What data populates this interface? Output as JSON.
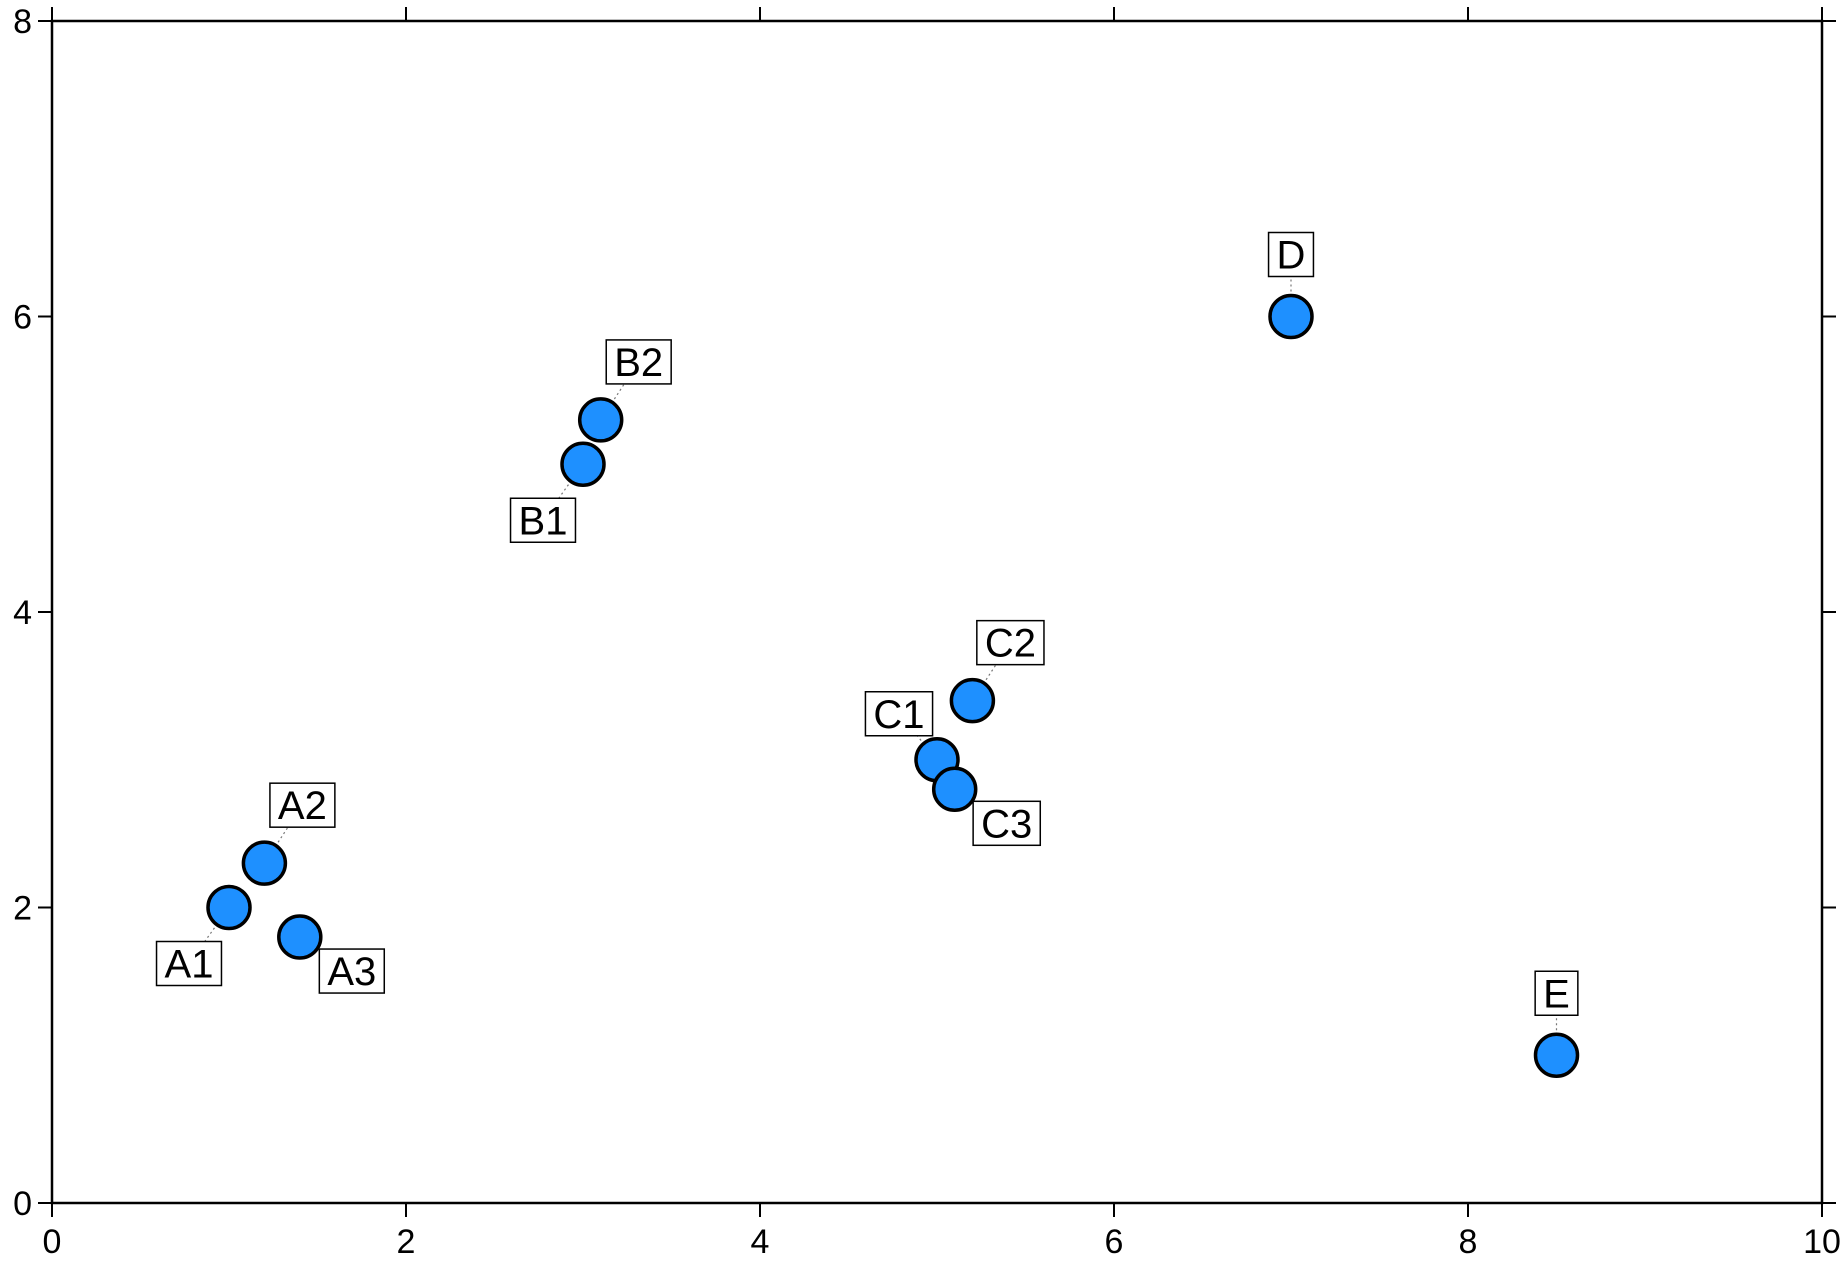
{
  "chart_data": {
    "type": "scatter",
    "title": "",
    "xlabel": "",
    "ylabel": "",
    "xlim": [
      0,
      10
    ],
    "ylim": [
      0,
      8
    ],
    "xticks": [
      0,
      2,
      4,
      6,
      8,
      10
    ],
    "yticks": [
      0,
      2,
      4,
      6,
      8
    ],
    "grid": false,
    "legend": false,
    "marker_color": "#1e90ff",
    "marker_edge_color": "#000000",
    "points": [
      {
        "label": "A1",
        "x": 1.0,
        "y": 2.0,
        "label_pos": "bottom-left"
      },
      {
        "label": "A2",
        "x": 1.2,
        "y": 2.3,
        "label_pos": "top-right"
      },
      {
        "label": "A3",
        "x": 1.4,
        "y": 1.8,
        "label_pos": "bottom-right"
      },
      {
        "label": "B1",
        "x": 3.0,
        "y": 5.0,
        "label_pos": "bottom-left"
      },
      {
        "label": "B2",
        "x": 3.1,
        "y": 5.3,
        "label_pos": "top-right"
      },
      {
        "label": "C1",
        "x": 5.0,
        "y": 3.0,
        "label_pos": "top-left"
      },
      {
        "label": "C2",
        "x": 5.2,
        "y": 3.4,
        "label_pos": "top-right"
      },
      {
        "label": "C3",
        "x": 5.1,
        "y": 2.8,
        "label_pos": "bottom-right"
      },
      {
        "label": "D",
        "x": 7.0,
        "y": 6.0,
        "label_pos": "top"
      },
      {
        "label": "E",
        "x": 8.5,
        "y": 1.0,
        "label_pos": "top"
      }
    ]
  }
}
